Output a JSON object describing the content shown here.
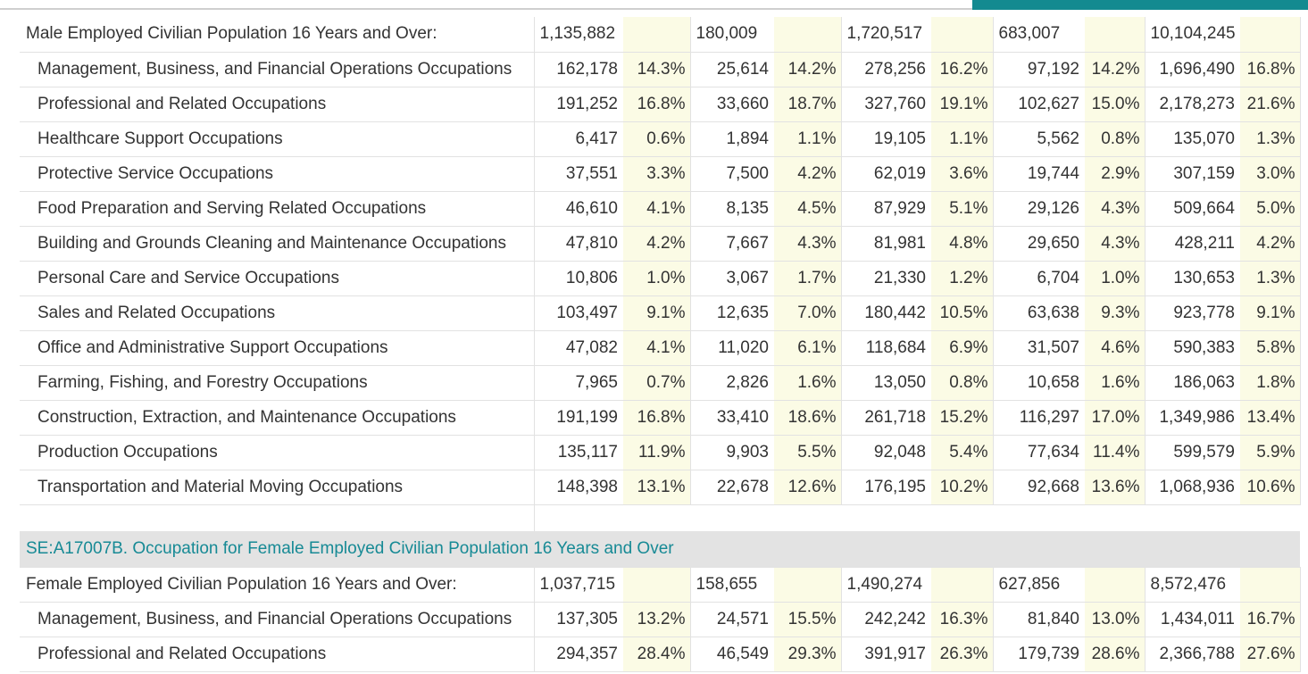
{
  "male": {
    "total": {
      "label": "Male Employed Civilian Population 16 Years and Over:",
      "cols": [
        {
          "num": "1,135,882",
          "pct": ""
        },
        {
          "num": "180,009",
          "pct": ""
        },
        {
          "num": "1,720,517",
          "pct": ""
        },
        {
          "num": "683,007",
          "pct": ""
        },
        {
          "num": "10,104,245",
          "pct": ""
        }
      ]
    },
    "rows": [
      {
        "label": "Management, Business, and Financial Operations Occupations",
        "cols": [
          {
            "num": "162,178",
            "pct": "14.3%"
          },
          {
            "num": "25,614",
            "pct": "14.2%"
          },
          {
            "num": "278,256",
            "pct": "16.2%"
          },
          {
            "num": "97,192",
            "pct": "14.2%"
          },
          {
            "num": "1,696,490",
            "pct": "16.8%"
          }
        ]
      },
      {
        "label": "Professional and Related Occupations",
        "cols": [
          {
            "num": "191,252",
            "pct": "16.8%"
          },
          {
            "num": "33,660",
            "pct": "18.7%"
          },
          {
            "num": "327,760",
            "pct": "19.1%"
          },
          {
            "num": "102,627",
            "pct": "15.0%"
          },
          {
            "num": "2,178,273",
            "pct": "21.6%"
          }
        ]
      },
      {
        "label": "Healthcare Support Occupations",
        "cols": [
          {
            "num": "6,417",
            "pct": "0.6%"
          },
          {
            "num": "1,894",
            "pct": "1.1%"
          },
          {
            "num": "19,105",
            "pct": "1.1%"
          },
          {
            "num": "5,562",
            "pct": "0.8%"
          },
          {
            "num": "135,070",
            "pct": "1.3%"
          }
        ]
      },
      {
        "label": "Protective Service Occupations",
        "cols": [
          {
            "num": "37,551",
            "pct": "3.3%"
          },
          {
            "num": "7,500",
            "pct": "4.2%"
          },
          {
            "num": "62,019",
            "pct": "3.6%"
          },
          {
            "num": "19,744",
            "pct": "2.9%"
          },
          {
            "num": "307,159",
            "pct": "3.0%"
          }
        ]
      },
      {
        "label": "Food Preparation and Serving Related Occupations",
        "cols": [
          {
            "num": "46,610",
            "pct": "4.1%"
          },
          {
            "num": "8,135",
            "pct": "4.5%"
          },
          {
            "num": "87,929",
            "pct": "5.1%"
          },
          {
            "num": "29,126",
            "pct": "4.3%"
          },
          {
            "num": "509,664",
            "pct": "5.0%"
          }
        ]
      },
      {
        "label": "Building and Grounds Cleaning and Maintenance Occupations",
        "cols": [
          {
            "num": "47,810",
            "pct": "4.2%"
          },
          {
            "num": "7,667",
            "pct": "4.3%"
          },
          {
            "num": "81,981",
            "pct": "4.8%"
          },
          {
            "num": "29,650",
            "pct": "4.3%"
          },
          {
            "num": "428,211",
            "pct": "4.2%"
          }
        ]
      },
      {
        "label": "Personal Care and Service Occupations",
        "cols": [
          {
            "num": "10,806",
            "pct": "1.0%"
          },
          {
            "num": "3,067",
            "pct": "1.7%"
          },
          {
            "num": "21,330",
            "pct": "1.2%"
          },
          {
            "num": "6,704",
            "pct": "1.0%"
          },
          {
            "num": "130,653",
            "pct": "1.3%"
          }
        ]
      },
      {
        "label": "Sales and Related Occupations",
        "cols": [
          {
            "num": "103,497",
            "pct": "9.1%"
          },
          {
            "num": "12,635",
            "pct": "7.0%"
          },
          {
            "num": "180,442",
            "pct": "10.5%"
          },
          {
            "num": "63,638",
            "pct": "9.3%"
          },
          {
            "num": "923,778",
            "pct": "9.1%"
          }
        ]
      },
      {
        "label": "Office and Administrative Support Occupations",
        "cols": [
          {
            "num": "47,082",
            "pct": "4.1%"
          },
          {
            "num": "11,020",
            "pct": "6.1%"
          },
          {
            "num": "118,684",
            "pct": "6.9%"
          },
          {
            "num": "31,507",
            "pct": "4.6%"
          },
          {
            "num": "590,383",
            "pct": "5.8%"
          }
        ]
      },
      {
        "label": "Farming, Fishing, and Forestry Occupations",
        "cols": [
          {
            "num": "7,965",
            "pct": "0.7%"
          },
          {
            "num": "2,826",
            "pct": "1.6%"
          },
          {
            "num": "13,050",
            "pct": "0.8%"
          },
          {
            "num": "10,658",
            "pct": "1.6%"
          },
          {
            "num": "186,063",
            "pct": "1.8%"
          }
        ]
      },
      {
        "label": "Construction, Extraction, and Maintenance Occupations",
        "cols": [
          {
            "num": "191,199",
            "pct": "16.8%"
          },
          {
            "num": "33,410",
            "pct": "18.6%"
          },
          {
            "num": "261,718",
            "pct": "15.2%"
          },
          {
            "num": "116,297",
            "pct": "17.0%"
          },
          {
            "num": "1,349,986",
            "pct": "13.4%"
          }
        ]
      },
      {
        "label": "Production Occupations",
        "cols": [
          {
            "num": "135,117",
            "pct": "11.9%"
          },
          {
            "num": "9,903",
            "pct": "5.5%"
          },
          {
            "num": "92,048",
            "pct": "5.4%"
          },
          {
            "num": "77,634",
            "pct": "11.4%"
          },
          {
            "num": "599,579",
            "pct": "5.9%"
          }
        ]
      },
      {
        "label": "Transportation and Material Moving Occupations",
        "cols": [
          {
            "num": "148,398",
            "pct": "13.1%"
          },
          {
            "num": "22,678",
            "pct": "12.6%"
          },
          {
            "num": "176,195",
            "pct": "10.2%"
          },
          {
            "num": "92,668",
            "pct": "13.6%"
          },
          {
            "num": "1,068,936",
            "pct": "10.6%"
          }
        ]
      }
    ]
  },
  "female": {
    "section_title": "SE:A17007B. Occupation for Female Employed Civilian Population 16 Years and Over",
    "total": {
      "label": "Female Employed Civilian Population 16 Years and Over:",
      "cols": [
        {
          "num": "1,037,715",
          "pct": ""
        },
        {
          "num": "158,655",
          "pct": ""
        },
        {
          "num": "1,490,274",
          "pct": ""
        },
        {
          "num": "627,856",
          "pct": ""
        },
        {
          "num": "8,572,476",
          "pct": ""
        }
      ]
    },
    "rows": [
      {
        "label": "Management, Business, and Financial Operations Occupations",
        "cols": [
          {
            "num": "137,305",
            "pct": "13.2%"
          },
          {
            "num": "24,571",
            "pct": "15.5%"
          },
          {
            "num": "242,242",
            "pct": "16.3%"
          },
          {
            "num": "81,840",
            "pct": "13.0%"
          },
          {
            "num": "1,434,011",
            "pct": "16.7%"
          }
        ]
      },
      {
        "label": "Professional and Related Occupations",
        "cols": [
          {
            "num": "294,357",
            "pct": "28.4%"
          },
          {
            "num": "46,549",
            "pct": "29.3%"
          },
          {
            "num": "391,917",
            "pct": "26.3%"
          },
          {
            "num": "179,739",
            "pct": "28.6%"
          },
          {
            "num": "2,366,788",
            "pct": "27.6%"
          }
        ]
      }
    ]
  },
  "colors": {
    "accent": "#138a90",
    "section_text": "#178a95",
    "section_bg": "#e3e3e3",
    "pct_bg": "#fbfbe5"
  }
}
